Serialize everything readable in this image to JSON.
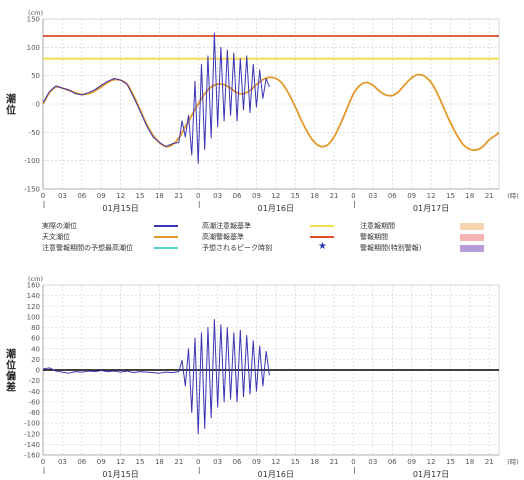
{
  "colors": {
    "observed": "#3b34b3",
    "astronomical": "#e5982a",
    "warning": "#e04b2a",
    "advisory": "#f0de48",
    "deviation": "#3b34b3",
    "zero_line": "#000000",
    "advisory_period": "#f7d4b0",
    "warning_period": "#f4b4b4",
    "special_period": "#b39cd8",
    "peak_line": "#55d6cf",
    "star": "#2d3ab0",
    "axis_text": "#555555"
  },
  "chart_data": [
    {
      "type": "line",
      "ylabel": "潮位",
      "unit": "(cm)",
      "ylim": [
        -150,
        150
      ],
      "yticks": [
        -150,
        -100,
        -50,
        0,
        50,
        100,
        150
      ],
      "xlim": [
        0,
        70.5
      ],
      "xtick_labels": [
        "0",
        "03",
        "06",
        "09",
        "12",
        "15",
        "18",
        "21",
        "0",
        "03",
        "06",
        "09",
        "12",
        "15",
        "18",
        "21",
        "0",
        "03",
        "06",
        "09",
        "12",
        "15",
        "18",
        "21"
      ],
      "x_unit": "(時)",
      "day_labels": [
        {
          "label": "01月15日",
          "hour": 12
        },
        {
          "label": "01月16日",
          "hour": 36
        },
        {
          "label": "01月17日",
          "hour": 60
        }
      ],
      "thresholds": [
        {
          "name": "高潮警報基準",
          "value": 120
        },
        {
          "name": "高潮注意報基準",
          "value": 80
        }
      ],
      "astronomical": {
        "name": "天文潮位",
        "x": [
          0,
          1,
          2,
          3,
          4,
          5,
          6,
          7,
          8,
          9,
          10,
          11,
          12,
          13,
          14,
          15,
          16,
          17,
          18,
          19,
          20,
          21,
          22,
          23,
          24,
          25,
          26,
          27,
          28,
          29,
          30,
          31,
          32,
          33,
          34,
          35,
          36,
          37,
          38,
          39,
          40,
          41,
          42,
          43,
          44,
          45,
          46,
          47,
          48,
          49,
          50,
          51,
          52,
          53,
          54,
          55,
          56,
          57,
          58,
          59,
          60,
          61,
          62,
          63,
          64,
          65,
          66,
          67,
          68,
          69,
          70,
          70.5
        ],
        "y": [
          0,
          20,
          30,
          28,
          24,
          20,
          17,
          18,
          23,
          30,
          38,
          43,
          42,
          35,
          15,
          -10,
          -35,
          -55,
          -68,
          -75,
          -72,
          -60,
          -40,
          -20,
          0,
          18,
          30,
          35,
          34,
          28,
          20,
          18,
          24,
          34,
          43,
          47,
          45,
          36,
          18,
          -5,
          -30,
          -52,
          -68,
          -75,
          -72,
          -58,
          -35,
          -8,
          18,
          33,
          38,
          33,
          23,
          16,
          15,
          22,
          35,
          46,
          52,
          49,
          38,
          18,
          -8,
          -33,
          -55,
          -72,
          -80,
          -81,
          -75,
          -63,
          -55,
          -50
        ]
      },
      "observed": {
        "name": "実際の潮位",
        "x": [
          0,
          1,
          2,
          3,
          4,
          5,
          6,
          7,
          8,
          9,
          10,
          11,
          12,
          13,
          14,
          15,
          16,
          17,
          18,
          19,
          20,
          21,
          21.5,
          22,
          22.5,
          23,
          23.5,
          24,
          24.5,
          25,
          25.5,
          26,
          26.5,
          27,
          27.5,
          28,
          28.5,
          29,
          29.5,
          30,
          30.5,
          31,
          31.5,
          32,
          32.5,
          33,
          33.5,
          34,
          34.5,
          35
        ],
        "y": [
          2,
          22,
          32,
          28,
          25,
          18,
          16,
          20,
          25,
          33,
          40,
          45,
          42,
          35,
          12,
          -12,
          -38,
          -58,
          -68,
          -75,
          -70,
          -68,
          -30,
          -58,
          -20,
          -90,
          40,
          -105,
          70,
          -80,
          85,
          -60,
          125,
          -40,
          100,
          -30,
          95,
          -20,
          90,
          -30,
          80,
          -10,
          85,
          -15,
          70,
          -5,
          60,
          10,
          45,
          30
        ]
      },
      "legend": {
        "rows": [
          [
            {
              "label": "実際の潮位",
              "swatch": "observed",
              "kind": "line"
            },
            {
              "label": "高潮注意報基準",
              "swatch": "advisory",
              "kind": "line"
            },
            {
              "label": "注意報期間",
              "swatch": "advisory_period",
              "kind": "box"
            }
          ],
          [
            {
              "label": "天文潮位",
              "swatch": "astronomical",
              "kind": "line"
            },
            {
              "label": "高潮警報基準",
              "swatch": "warning",
              "kind": "line"
            },
            {
              "label": "警報期間",
              "swatch": "warning_period",
              "kind": "box"
            }
          ],
          [
            {
              "label": "注意警報期間の予想最高潮位",
              "swatch": "peak_line",
              "kind": "line"
            },
            {
              "label": "予想されるピーク時刻",
              "swatch": "star",
              "kind": "star"
            },
            {
              "label": "警報期間(特別警報)",
              "swatch": "special_period",
              "kind": "box"
            }
          ]
        ]
      }
    },
    {
      "type": "line",
      "ylabel": "潮位偏差",
      "unit": "(cm)",
      "ylim": [
        -160,
        160
      ],
      "yticks": [
        -160,
        -140,
        -120,
        -100,
        -80,
        -60,
        -40,
        -20,
        0,
        20,
        40,
        60,
        80,
        100,
        120,
        140,
        160
      ],
      "xlim": [
        0,
        70.5
      ],
      "xtick_labels": [
        "0",
        "03",
        "06",
        "09",
        "12",
        "15",
        "18",
        "21",
        "0",
        "03",
        "06",
        "09",
        "12",
        "15",
        "18",
        "21",
        "0",
        "03",
        "06",
        "09",
        "12",
        "15",
        "18",
        "21"
      ],
      "x_unit": "(時)",
      "day_labels": [
        {
          "label": "01月15日",
          "hour": 12
        },
        {
          "label": "01月16日",
          "hour": 36
        },
        {
          "label": "01月17日",
          "hour": 60
        }
      ],
      "deviation": {
        "name": "潮位偏差",
        "x": [
          0,
          1,
          2,
          3,
          4,
          5,
          6,
          7,
          8,
          9,
          10,
          11,
          12,
          13,
          14,
          15,
          16,
          17,
          18,
          19,
          20,
          21,
          21.5,
          22,
          22.5,
          23,
          23.5,
          24,
          24.5,
          25,
          25.5,
          26,
          26.5,
          27,
          27.5,
          28,
          28.5,
          29,
          29.5,
          30,
          30.5,
          31,
          31.5,
          32,
          32.5,
          33,
          33.5,
          34,
          34.5,
          35
        ],
        "y": [
          2,
          4,
          -2,
          -4,
          -6,
          -3,
          -4,
          -2,
          -3,
          -1,
          -3,
          -2,
          -4,
          -2,
          -5,
          -3,
          -4,
          -5,
          -6,
          -4,
          -5,
          -3,
          18,
          -30,
          40,
          -80,
          60,
          -120,
          70,
          -110,
          80,
          -90,
          95,
          -70,
          85,
          -60,
          80,
          -55,
          70,
          -60,
          75,
          -50,
          65,
          -45,
          55,
          -40,
          45,
          -30,
          35,
          -10
        ]
      }
    }
  ]
}
